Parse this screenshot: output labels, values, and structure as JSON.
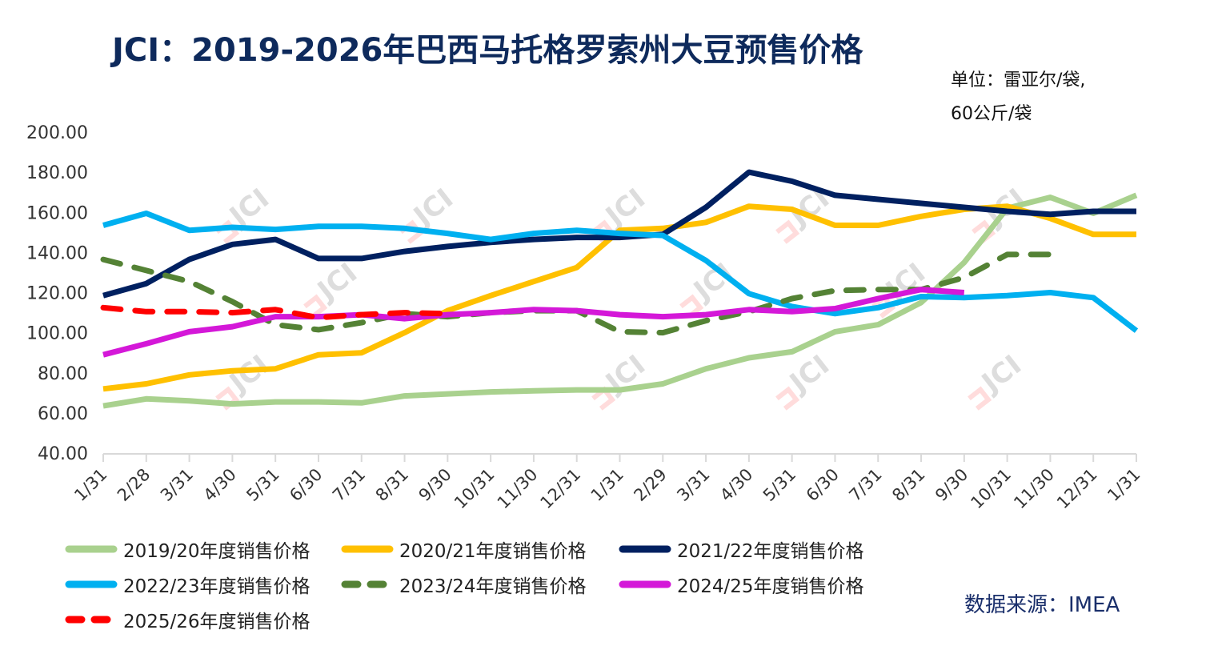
{
  "header": {
    "title": "JCI：2019-2026年巴西马托格罗索州大豆预售价格",
    "unit_line1": "单位：雷亚尔/袋,",
    "unit_line2": "60公斤/袋"
  },
  "footer": {
    "source": "数据来源：IMEA"
  },
  "watermark": "JCI",
  "chart_data": {
    "type": "line",
    "title": "JCI：2019-2026年巴西马托格罗索州大豆预售价格",
    "xlabel": "",
    "ylabel": "雷亚尔/袋",
    "ylim": [
      40,
      200
    ],
    "yticks": [
      "200.00",
      "180.00",
      "160.00",
      "140.00",
      "120.00",
      "100.00",
      "80.00",
      "60.00",
      "40.00"
    ],
    "ytick_values": [
      200,
      180,
      160,
      140,
      120,
      100,
      80,
      60,
      40
    ],
    "grid": false,
    "legend_position": "bottom",
    "categories": [
      "1/31",
      "2/28",
      "3/31",
      "4/30",
      "5/31",
      "6/30",
      "7/31",
      "8/31",
      "9/30",
      "10/31",
      "11/30",
      "12/31",
      "1/31",
      "2/29",
      "3/31",
      "4/30",
      "5/31",
      "6/30",
      "7/31",
      "8/31",
      "9/30",
      "10/31",
      "11/30",
      "12/31",
      "1/31"
    ],
    "series": [
      {
        "name": "2019/20年度销售价格",
        "color": "#a9d18e",
        "dash": false,
        "values": [
          63.5,
          67,
          66,
          64.5,
          65.5,
          65.5,
          65,
          68.5,
          69.5,
          70.5,
          71,
          71.5,
          71.5,
          74.5,
          82,
          87.5,
          90.5,
          100.5,
          104,
          115,
          135,
          162,
          167.5,
          159.5,
          168.5
        ]
      },
      {
        "name": "2020/21年度销售价格",
        "color": "#ffc000",
        "dash": false,
        "values": [
          72,
          74.5,
          79,
          81,
          82,
          89,
          90,
          100,
          111,
          118.5,
          125.5,
          132.5,
          151,
          152,
          155,
          163,
          161.5,
          153.5,
          153.5,
          158,
          161.5,
          163,
          157,
          149,
          149
        ]
      },
      {
        "name": "2021/22年度销售价格",
        "color": "#002060",
        "dash": false,
        "values": [
          118.5,
          124.5,
          136.5,
          144,
          146.5,
          137,
          137,
          140.5,
          143,
          145,
          146.5,
          147.5,
          147.5,
          149,
          162.5,
          180,
          175.5,
          168.5,
          166.5,
          164.5,
          162.5,
          160.5,
          159,
          160.5,
          160.5
        ]
      },
      {
        "name": "2022/23年度销售价格",
        "color": "#00b0f0",
        "dash": false,
        "values": [
          153.5,
          159.5,
          151,
          152.5,
          151.5,
          153,
          153,
          152,
          149.5,
          146.5,
          149.5,
          151,
          149.5,
          148.5,
          136,
          119.5,
          113,
          109.5,
          112.5,
          118,
          117.5,
          118.5,
          120,
          117.5,
          101
        ]
      },
      {
        "name": "2023/24年度销售价格",
        "color": "#548235",
        "dash": true,
        "values": [
          136.5,
          131,
          125.5,
          115.5,
          104,
          101.5,
          105,
          109.5,
          108,
          110,
          111,
          111,
          100.5,
          100,
          106,
          110.5,
          117,
          121,
          121.5,
          121.5,
          127.5,
          139,
          139
        ]
      },
      {
        "name": "2024/25年度销售价格",
        "color": "#d418d8",
        "dash": false,
        "values": [
          89,
          94.5,
          100.5,
          103,
          108,
          108,
          109,
          107,
          109,
          110,
          111.5,
          111,
          109,
          108,
          109,
          111.5,
          110.5,
          112,
          117,
          121.5,
          120
        ]
      },
      {
        "name": "2025/26年度销售价格",
        "color": "#ff0000",
        "dash": true,
        "values": [
          112.5,
          110.5,
          110.5,
          110,
          111.5,
          107.5,
          109,
          110,
          109.5
        ]
      }
    ]
  }
}
